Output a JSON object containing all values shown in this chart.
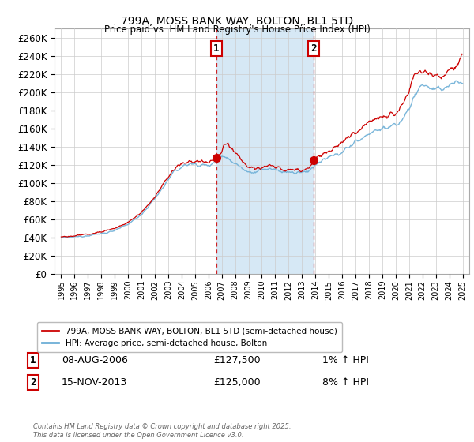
{
  "title": "799A, MOSS BANK WAY, BOLTON, BL1 5TD",
  "subtitle": "Price paid vs. HM Land Registry's House Price Index (HPI)",
  "legend_line1": "799A, MOSS BANK WAY, BOLTON, BL1 5TD (semi-detached house)",
  "legend_line2": "HPI: Average price, semi-detached house, Bolton",
  "footer": "Contains HM Land Registry data © Crown copyright and database right 2025.\nThis data is licensed under the Open Government Licence v3.0.",
  "annotation1_label": "1",
  "annotation1_date": "08-AUG-2006",
  "annotation1_price": "£127,500",
  "annotation1_hpi": "1% ↑ HPI",
  "annotation2_label": "2",
  "annotation2_date": "15-NOV-2013",
  "annotation2_price": "£125,000",
  "annotation2_hpi": "8% ↑ HPI",
  "purchase1_year": 2006.6,
  "purchase1_value": 127500,
  "purchase2_year": 2013.88,
  "purchase2_value": 125000,
  "hpi_color": "#6baed6",
  "price_color": "#cc0000",
  "purchase_dot_color": "#cc0000",
  "span_color": "#d6e8f5",
  "background_color": "#ffffff",
  "grid_color": "#cccccc",
  "ylim": [
    0,
    270000
  ],
  "yticks": [
    0,
    20000,
    40000,
    60000,
    80000,
    100000,
    120000,
    140000,
    160000,
    180000,
    200000,
    220000,
    240000,
    260000
  ]
}
